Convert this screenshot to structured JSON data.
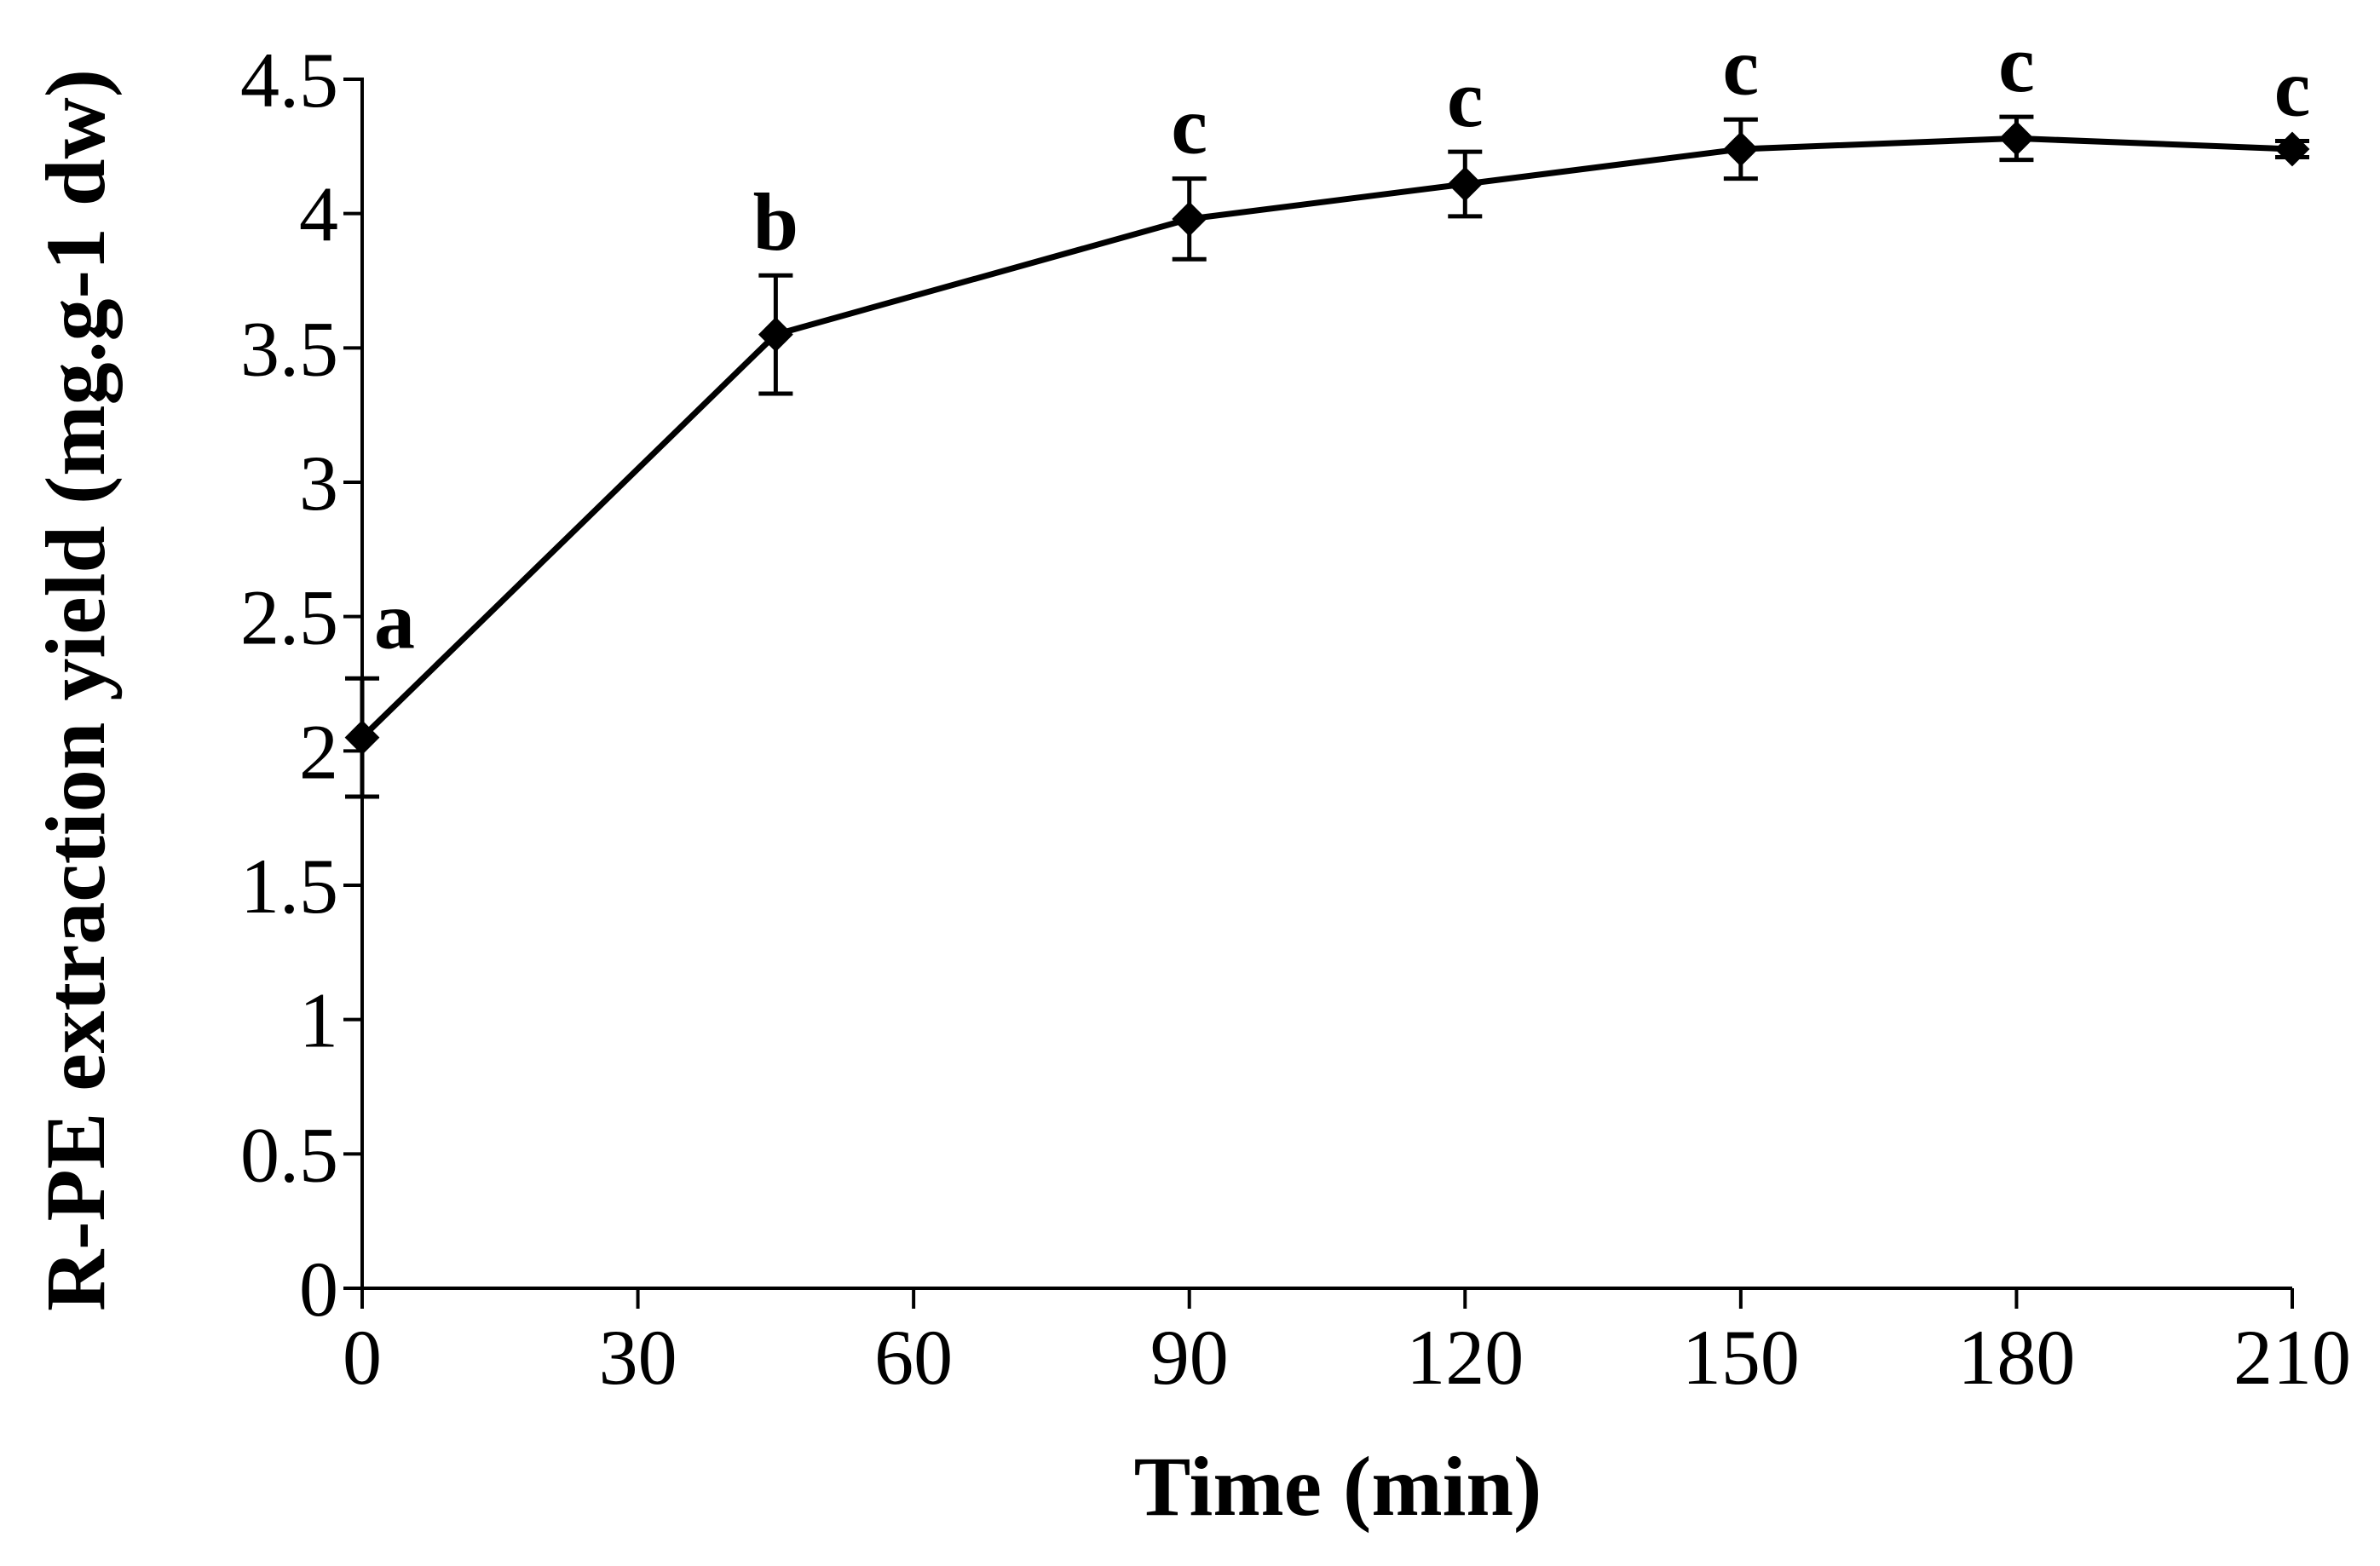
{
  "chart_data": {
    "type": "line",
    "title": "",
    "xlabel": "Time (min)",
    "ylabel": "R-PE extraction yield (mg.g-1 dw)",
    "xlim": [
      0,
      210
    ],
    "ylim": [
      0,
      4.5
    ],
    "x_ticks": [
      0,
      30,
      60,
      90,
      120,
      150,
      180,
      210
    ],
    "x_tick_labels": [
      "0",
      "30",
      "60",
      "90",
      "120",
      "150",
      "180",
      "210"
    ],
    "y_ticks": [
      0,
      0.5,
      1,
      1.5,
      2,
      2.5,
      3,
      3.5,
      4,
      4.5
    ],
    "y_tick_labels": [
      "0",
      "0.5",
      "1",
      "1.5",
      "2",
      "2.5",
      "3",
      "3.5",
      "4",
      "4.5"
    ],
    "grid": false,
    "series": [
      {
        "name": "R-PE extraction yield",
        "x": [
          0,
          45,
          90,
          120,
          150,
          180,
          210
        ],
        "values": [
          2.05,
          3.55,
          3.98,
          4.11,
          4.24,
          4.28,
          4.24
        ],
        "errors": [
          0.22,
          0.22,
          0.15,
          0.12,
          0.11,
          0.08,
          0.03
        ],
        "significance_letters": [
          "a",
          "b",
          "c",
          "c",
          "c",
          "c",
          "c"
        ],
        "marker": "diamond",
        "color": "#000000"
      }
    ]
  }
}
